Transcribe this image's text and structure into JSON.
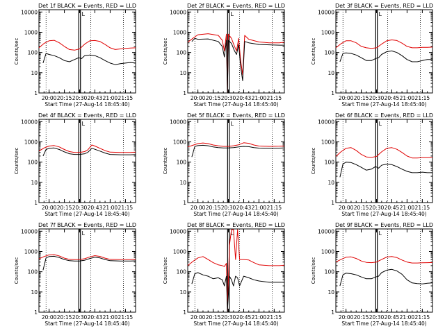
{
  "panel_common": {
    "ylabel": "Counts/sec",
    "xlabel": "Start Time (27-Aug-14 18:45:40)",
    "y_ticks": [
      "1",
      "10",
      "100",
      "1000",
      "10000"
    ],
    "y_scale": "log",
    "grid": "dotted vertical markers",
    "series_colors": {
      "events": "#000000",
      "lld": "#e00000"
    }
  },
  "chart_data": [
    {
      "type": "line",
      "title": "Det 1f BLACK = Events, RED = LLD",
      "ylim": [
        1,
        13000
      ],
      "x_ticks": [
        "20:00",
        "20:15",
        "20:30",
        "20:43",
        "21:00",
        "21:15"
      ],
      "vlines": {
        "dotted": [
          "19:57",
          "20:41",
          "21:13"
        ],
        "solid": [
          "20:30"
        ]
      },
      "top_marks": [
        {
          "label": "L",
          "x": "20:32"
        }
      ],
      "events": {
        "x": [
          "19:54",
          "19:57",
          "20:00",
          "20:05",
          "20:10",
          "20:15",
          "20:20",
          "20:25",
          "20:29",
          "20:32",
          "20:35",
          "20:40",
          "20:45",
          "20:50",
          "20:55",
          "21:00",
          "21:05",
          "21:10",
          "21:15",
          "21:20",
          "21:25"
        ],
        "y": [
          30,
          90,
          80,
          70,
          55,
          40,
          35,
          45,
          55,
          50,
          70,
          75,
          70,
          55,
          40,
          30,
          25,
          28,
          30,
          32,
          30
        ]
      },
      "lld": {
        "x": [
          "19:50",
          "19:55",
          "20:00",
          "20:05",
          "20:10",
          "20:15",
          "20:20",
          "20:25",
          "20:30",
          "20:35",
          "20:40",
          "20:45",
          "20:50",
          "20:55",
          "21:00",
          "21:05",
          "21:10",
          "21:15",
          "21:20",
          "21:25"
        ],
        "y": [
          170,
          280,
          380,
          400,
          300,
          200,
          140,
          130,
          150,
          260,
          380,
          390,
          350,
          250,
          170,
          140,
          150,
          160,
          165,
          170
        ]
      }
    },
    {
      "type": "line",
      "title": "Det 2f BLACK = Events, RED = LLD",
      "ylim": [
        1,
        13000
      ],
      "x_ticks": [
        "20:00",
        "20:15",
        "20:30",
        "20:43",
        "21:00",
        "21:15"
      ],
      "vlines": {
        "dotted": [
          "19:57",
          "20:41",
          "21:13"
        ],
        "solid": [
          "20:30"
        ]
      },
      "top_marks": [
        {
          "label": "L",
          "x": "20:32"
        }
      ],
      "events": {
        "x": [
          "19:54",
          "19:57",
          "20:00",
          "20:10",
          "20:20",
          "20:24",
          "20:26",
          "20:28",
          "20:29",
          "20:30",
          "20:33",
          "20:36",
          "20:38",
          "20:40",
          "20:42",
          "20:44",
          "20:46",
          "20:50",
          "21:00",
          "21:10",
          "21:20",
          "21:25"
        ],
        "y": [
          350,
          500,
          450,
          470,
          350,
          200,
          60,
          400,
          1.1,
          400,
          280,
          120,
          80,
          250,
          20,
          4,
          350,
          300,
          250,
          240,
          230,
          230
        ]
      },
      "lld": {
        "x": [
          "19:50",
          "19:55",
          "20:00",
          "20:10",
          "20:20",
          "20:24",
          "20:26",
          "20:28",
          "20:29",
          "20:30",
          "20:33",
          "20:36",
          "20:38",
          "20:40",
          "20:42",
          "20:44",
          "20:46",
          "20:50",
          "21:00",
          "21:10",
          "21:20",
          "21:25"
        ],
        "y": [
          320,
          500,
          750,
          850,
          700,
          400,
          120,
          800,
          1.1,
          800,
          500,
          200,
          120,
          500,
          40,
          8,
          700,
          450,
          330,
          300,
          300,
          320
        ]
      }
    },
    {
      "type": "line",
      "title": "Det 3f BLACK = Events, RED = LLD",
      "ylim": [
        1,
        13000
      ],
      "x_ticks": [
        "20:00",
        "20:15",
        "20:30",
        "20:45",
        "21:00",
        "21:15"
      ],
      "vlines": {
        "dotted": [
          "19:57",
          "20:41",
          "21:13"
        ],
        "solid": [
          "20:30"
        ]
      },
      "top_marks": [
        {
          "label": "L",
          "x": "20:32"
        }
      ],
      "events": {
        "x": [
          "19:54",
          "19:57",
          "20:00",
          "20:05",
          "20:10",
          "20:15",
          "20:20",
          "20:25",
          "20:29",
          "20:32",
          "20:35",
          "20:40",
          "20:45",
          "20:50",
          "20:55",
          "21:00",
          "21:05",
          "21:10",
          "21:15",
          "21:20",
          "21:25"
        ],
        "y": [
          35,
          90,
          95,
          90,
          75,
          55,
          40,
          40,
          50,
          55,
          80,
          110,
          120,
          100,
          70,
          45,
          35,
          35,
          40,
          45,
          45
        ]
      },
      "lld": {
        "x": [
          "19:50",
          "19:55",
          "20:00",
          "20:05",
          "20:10",
          "20:15",
          "20:20",
          "20:25",
          "20:30",
          "20:35",
          "20:40",
          "20:45",
          "20:50",
          "20:55",
          "21:00",
          "21:05",
          "21:10",
          "21:15",
          "21:20",
          "21:25"
        ],
        "y": [
          170,
          270,
          380,
          380,
          300,
          200,
          170,
          160,
          170,
          260,
          380,
          420,
          390,
          290,
          200,
          170,
          170,
          180,
          180,
          185
        ]
      }
    },
    {
      "type": "line",
      "title": "Det 4f BLACK = Events, RED = LLD",
      "ylim": [
        1,
        13000
      ],
      "x_ticks": [
        "20:00",
        "20:15",
        "20:30",
        "20:43",
        "21:00",
        "21:15"
      ],
      "vlines": {
        "dotted": [
          "19:57",
          "20:41",
          "21:13"
        ],
        "solid": [
          "20:30"
        ]
      },
      "top_marks": [
        {
          "label": "L",
          "x": "20:32"
        }
      ],
      "events": {
        "x": [
          "19:54",
          "19:57",
          "20:00",
          "20:05",
          "20:10",
          "20:15",
          "20:20",
          "20:25",
          "20:30",
          "20:35",
          "20:38",
          "20:42",
          "20:45",
          "20:50",
          "20:55",
          "21:00",
          "21:10",
          "21:20",
          "21:25"
        ],
        "y": [
          200,
          420,
          480,
          500,
          420,
          320,
          260,
          240,
          240,
          260,
          300,
          480,
          430,
          350,
          280,
          240,
          230,
          230,
          235
        ]
      },
      "lld": {
        "x": [
          "19:50",
          "19:55",
          "20:00",
          "20:05",
          "20:10",
          "20:15",
          "20:20",
          "20:25",
          "20:30",
          "20:35",
          "20:38",
          "20:42",
          "20:45",
          "20:50",
          "20:55",
          "21:00",
          "21:10",
          "21:20",
          "21:25"
        ],
        "y": [
          350,
          500,
          620,
          660,
          560,
          420,
          330,
          300,
          300,
          330,
          400,
          700,
          620,
          480,
          370,
          310,
          300,
          300,
          310
        ]
      }
    },
    {
      "type": "line",
      "title": "Det 5f BLACK = Events, RED = LLD",
      "ylim": [
        1,
        13000
      ],
      "x_ticks": [
        "20:00",
        "20:15",
        "20:30",
        "20:43",
        "21:00",
        "21:15"
      ],
      "vlines": {
        "dotted": [
          "19:57",
          "20:41",
          "21:13"
        ],
        "solid": [
          "20:30"
        ]
      },
      "top_marks": [
        {
          "label": "L",
          "x": "20:32"
        }
      ],
      "events": {
        "x": [
          "19:54",
          "19:57",
          "20:00",
          "20:05",
          "20:10",
          "20:15",
          "20:20",
          "20:25",
          "20:30",
          "20:35",
          "20:40",
          "20:45",
          "20:50",
          "20:55",
          "21:00",
          "21:10",
          "21:20",
          "21:25"
        ],
        "y": [
          180,
          600,
          650,
          680,
          640,
          560,
          520,
          500,
          500,
          520,
          560,
          600,
          580,
          520,
          490,
          480,
          490,
          500
        ]
      },
      "lld": {
        "x": [
          "19:50",
          "19:55",
          "20:00",
          "20:05",
          "20:10",
          "20:15",
          "20:20",
          "20:25",
          "20:30",
          "20:35",
          "20:40",
          "20:45",
          "20:50",
          "20:55",
          "21:00",
          "21:10",
          "21:20",
          "21:25"
        ],
        "y": [
          560,
          680,
          820,
          880,
          820,
          700,
          640,
          600,
          600,
          640,
          720,
          900,
          850,
          700,
          620,
          600,
          610,
          620
        ]
      }
    },
    {
      "type": "line",
      "title": "Det 6f BLACK = Events, RED = LLD",
      "ylim": [
        1,
        13000
      ],
      "x_ticks": [
        "20:00",
        "20:15",
        "20:30",
        "20:45",
        "21:00",
        "21:15"
      ],
      "vlines": {
        "dotted": [
          "19:57",
          "20:41",
          "21:13"
        ],
        "solid": [
          "20:30"
        ]
      },
      "top_marks": [
        {
          "label": "L",
          "x": "20:32"
        }
      ],
      "events": {
        "x": [
          "19:54",
          "19:57",
          "20:00",
          "20:05",
          "20:10",
          "20:15",
          "20:20",
          "20:25",
          "20:29",
          "20:32",
          "20:35",
          "20:40",
          "20:45",
          "20:50",
          "20:55",
          "21:00",
          "21:05",
          "21:10",
          "21:15",
          "21:20",
          "21:25"
        ],
        "y": [
          18,
          80,
          100,
          95,
          75,
          55,
          40,
          45,
          60,
          50,
          70,
          80,
          75,
          60,
          45,
          35,
          30,
          30,
          32,
          30,
          30
        ]
      },
      "lld": {
        "x": [
          "19:50",
          "19:55",
          "20:00",
          "20:05",
          "20:10",
          "20:15",
          "20:20",
          "20:25",
          "20:30",
          "20:35",
          "20:40",
          "20:45",
          "20:50",
          "20:55",
          "21:00",
          "21:05",
          "21:10",
          "21:15",
          "21:20",
          "21:25"
        ],
        "y": [
          190,
          320,
          480,
          520,
          380,
          240,
          180,
          170,
          190,
          320,
          480,
          520,
          430,
          300,
          200,
          160,
          160,
          165,
          165,
          170
        ]
      }
    },
    {
      "type": "line",
      "title": "Det 7f BLACK = Events, RED = LLD",
      "ylim": [
        1,
        13000
      ],
      "x_ticks": [
        "20:00",
        "20:15",
        "20:30",
        "20:43",
        "21:00",
        "21:15"
      ],
      "vlines": {
        "dotted": [
          "19:57",
          "20:41",
          "21:13"
        ],
        "solid": [
          "20:30"
        ]
      },
      "top_marks": [
        {
          "label": "L",
          "x": "20:32"
        }
      ],
      "events": {
        "x": [
          "19:54",
          "19:57",
          "20:00",
          "20:05",
          "20:10",
          "20:15",
          "20:20",
          "20:25",
          "20:30",
          "20:35",
          "20:40",
          "20:45",
          "20:50",
          "20:55",
          "21:00",
          "21:10",
          "21:20",
          "21:25"
        ],
        "y": [
          120,
          480,
          560,
          580,
          500,
          400,
          350,
          340,
          340,
          370,
          450,
          520,
          480,
          400,
          350,
          340,
          340,
          345
        ]
      },
      "lld": {
        "x": [
          "19:50",
          "19:55",
          "20:00",
          "20:05",
          "20:10",
          "20:15",
          "20:20",
          "20:25",
          "20:30",
          "20:35",
          "20:40",
          "20:45",
          "20:50",
          "20:55",
          "21:00",
          "21:10",
          "21:20",
          "21:25"
        ],
        "y": [
          430,
          560,
          680,
          700,
          600,
          470,
          410,
          400,
          400,
          440,
          540,
          620,
          570,
          470,
          410,
          400,
          400,
          410
        ]
      }
    },
    {
      "type": "line",
      "title": "Det 8f BLACK = Events, RED = LLD",
      "ylim": [
        1,
        13000
      ],
      "x_ticks": [
        "20:00",
        "20:15",
        "20:30",
        "20:45",
        "21:00",
        "21:15"
      ],
      "vlines": {
        "dotted": [
          "19:57",
          "20:41",
          "21:13"
        ],
        "solid": [
          "20:30"
        ]
      },
      "top_marks": [
        {
          "label": "L",
          "x": "20:32"
        }
      ],
      "events": {
        "x": [
          "19:54",
          "19:57",
          "20:00",
          "20:05",
          "20:10",
          "20:15",
          "20:20",
          "20:24",
          "20:26",
          "20:28",
          "20:29",
          "20:31",
          "20:33",
          "20:35",
          "20:37",
          "20:39",
          "20:41",
          "20:45",
          "20:50",
          "20:55",
          "21:00",
          "21:10",
          "21:20",
          "21:25"
        ],
        "y": [
          25,
          80,
          90,
          70,
          60,
          45,
          50,
          40,
          20,
          60,
          1.2,
          60,
          40,
          20,
          60,
          50,
          20,
          60,
          50,
          40,
          35,
          30,
          30,
          30
        ]
      },
      "lld": {
        "x": [
          "19:50",
          "19:55",
          "20:00",
          "20:05",
          "20:10",
          "20:15",
          "20:20",
          "20:24",
          "20:26",
          "20:28",
          "20:29",
          "20:31",
          "20:33",
          "20:35",
          "20:37",
          "20:39",
          "20:41",
          "20:45",
          "20:50",
          "20:55",
          "21:00",
          "21:10",
          "21:20",
          "21:25"
        ],
        "y": [
          200,
          320,
          480,
          560,
          400,
          280,
          220,
          200,
          180,
          260,
          1.2,
          2000,
          12000,
          12000,
          400,
          12000,
          400,
          400,
          380,
          280,
          220,
          200,
          200,
          210
        ]
      }
    },
    {
      "type": "line",
      "title": "Det 9f BLACK = Events, RED = LLD",
      "ylim": [
        1,
        13000
      ],
      "x_ticks": [
        "20:00",
        "20:15",
        "20:30",
        "20:45",
        "21:00",
        "21:15"
      ],
      "vlines": {
        "dotted": [
          "19:57",
          "20:41",
          "21:13"
        ],
        "solid": [
          "20:30"
        ]
      },
      "top_marks": [
        {
          "label": "L",
          "x": "20:32"
        }
      ],
      "events": {
        "x": [
          "19:54",
          "19:57",
          "20:00",
          "20:05",
          "20:10",
          "20:15",
          "20:20",
          "20:25",
          "20:29",
          "20:32",
          "20:35",
          "20:40",
          "20:45",
          "20:50",
          "20:55",
          "21:00",
          "21:05",
          "21:10",
          "21:15",
          "21:20",
          "21:25"
        ],
        "y": [
          20,
          70,
          85,
          80,
          70,
          55,
          45,
          45,
          55,
          60,
          90,
          120,
          130,
          110,
          75,
          40,
          28,
          26,
          25,
          27,
          28
        ]
      },
      "lld": {
        "x": [
          "19:50",
          "19:55",
          "20:00",
          "20:05",
          "20:10",
          "20:15",
          "20:20",
          "20:25",
          "20:30",
          "20:35",
          "20:40",
          "20:45",
          "20:50",
          "20:55",
          "21:00",
          "21:05",
          "21:10",
          "21:15",
          "21:20",
          "21:25"
        ],
        "y": [
          300,
          400,
          520,
          540,
          450,
          340,
          290,
          280,
          300,
          400,
          530,
          560,
          500,
          380,
          300,
          270,
          270,
          275,
          280,
          285
        ]
      }
    }
  ]
}
